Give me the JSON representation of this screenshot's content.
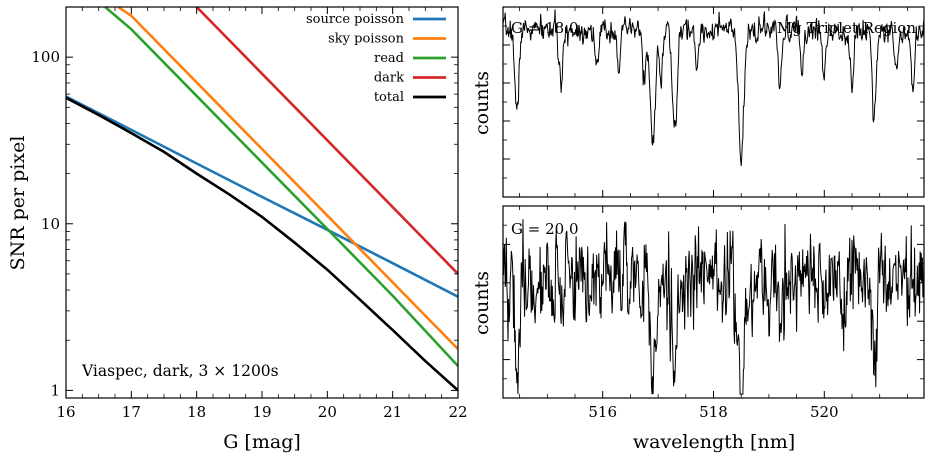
{
  "chart_data": [
    {
      "type": "line",
      "xlabel": "G [mag]",
      "ylabel": "SNR per pixel",
      "xlim": [
        16,
        22
      ],
      "ylim": [
        0.9,
        200
      ],
      "yscale": "log",
      "grid": false,
      "legend_position": "top-right",
      "xticks": [
        "16",
        "17",
        "18",
        "19",
        "20",
        "21",
        "22"
      ],
      "yticks": [
        "1",
        "10",
        "100"
      ],
      "annotation": "Viaspec, dark, 3 × 1200s",
      "series": [
        {
          "name": "source poisson",
          "color": "#1f77b4",
          "x": [
            16,
            17,
            18,
            19,
            20,
            21,
            22
          ],
          "y": [
            58,
            36.6,
            23.0,
            14.5,
            9.2,
            5.8,
            3.65
          ]
        },
        {
          "name": "sky poisson",
          "color": "#ff7f0e",
          "x": [
            16.8,
            17,
            18,
            19,
            20,
            21,
            22
          ],
          "y": [
            200,
            177,
            70.5,
            28.1,
            11.2,
            4.45,
            1.77
          ]
        },
        {
          "name": "read",
          "color": "#2ca02c",
          "x": [
            16.6,
            17,
            18,
            19,
            20,
            21,
            22
          ],
          "y": [
            200,
            147,
            58.5,
            23.3,
            9.3,
            3.7,
            1.4
          ]
        },
        {
          "name": "dark",
          "color": "#d62728",
          "x": [
            18,
            19,
            20,
            21,
            22
          ],
          "y": [
            200,
            79.6,
            31.7,
            12.6,
            5.0
          ]
        },
        {
          "name": "total",
          "color": "#000000",
          "x": [
            16,
            16.5,
            17,
            17.5,
            18,
            18.5,
            19,
            19.5,
            20,
            20.5,
            21,
            21.5,
            22
          ],
          "y": [
            57,
            45,
            35,
            27,
            20,
            15,
            11,
            7.7,
            5.3,
            3.5,
            2.3,
            1.5,
            1.0
          ]
        }
      ]
    },
    {
      "type": "line",
      "label": "G = 18.0",
      "title": "Mg Triplet Region",
      "ylabel": "counts",
      "xlim": [
        514.2,
        521.8
      ],
      "yticks_labeled": false,
      "noise": 0.05,
      "seed": 7,
      "continuum": 0.88,
      "absorption_lines": [
        {
          "center": 514.45,
          "depth": 0.45,
          "width": 0.035
        },
        {
          "center": 515.25,
          "depth": 0.3,
          "width": 0.035
        },
        {
          "center": 515.9,
          "depth": 0.22,
          "width": 0.03
        },
        {
          "center": 516.3,
          "depth": 0.2,
          "width": 0.03
        },
        {
          "center": 516.75,
          "depth": 0.25,
          "width": 0.03
        },
        {
          "center": 516.9,
          "depth": 0.62,
          "width": 0.045
        },
        {
          "center": 517.05,
          "depth": 0.28,
          "width": 0.03
        },
        {
          "center": 517.3,
          "depth": 0.52,
          "width": 0.045
        },
        {
          "center": 517.7,
          "depth": 0.2,
          "width": 0.03
        },
        {
          "center": 518.5,
          "depth": 0.68,
          "width": 0.05
        },
        {
          "center": 519.2,
          "depth": 0.3,
          "width": 0.035
        },
        {
          "center": 519.6,
          "depth": 0.22,
          "width": 0.03
        },
        {
          "center": 520.0,
          "depth": 0.25,
          "width": 0.03
        },
        {
          "center": 520.5,
          "depth": 0.3,
          "width": 0.035
        },
        {
          "center": 520.9,
          "depth": 0.45,
          "width": 0.035
        },
        {
          "center": 521.3,
          "depth": 0.25,
          "width": 0.03
        },
        {
          "center": 521.6,
          "depth": 0.3,
          "width": 0.03
        }
      ]
    },
    {
      "type": "line",
      "label": "G = 20.0",
      "ylabel": "counts",
      "xlabel": "wavelength [nm]",
      "xlim": [
        514.2,
        521.8
      ],
      "xticks": [
        "516",
        "518",
        "520"
      ],
      "yticks_labeled": false,
      "noise": 0.2,
      "seed": 19,
      "continuum": 0.62,
      "absorption_lines": [
        {
          "center": 514.45,
          "depth": 0.45,
          "width": 0.035
        },
        {
          "center": 515.25,
          "depth": 0.3,
          "width": 0.035
        },
        {
          "center": 516.9,
          "depth": 0.6,
          "width": 0.045
        },
        {
          "center": 517.3,
          "depth": 0.5,
          "width": 0.045
        },
        {
          "center": 518.5,
          "depth": 0.6,
          "width": 0.05
        },
        {
          "center": 519.2,
          "depth": 0.3,
          "width": 0.035
        },
        {
          "center": 520.9,
          "depth": 0.4,
          "width": 0.035
        }
      ]
    }
  ]
}
